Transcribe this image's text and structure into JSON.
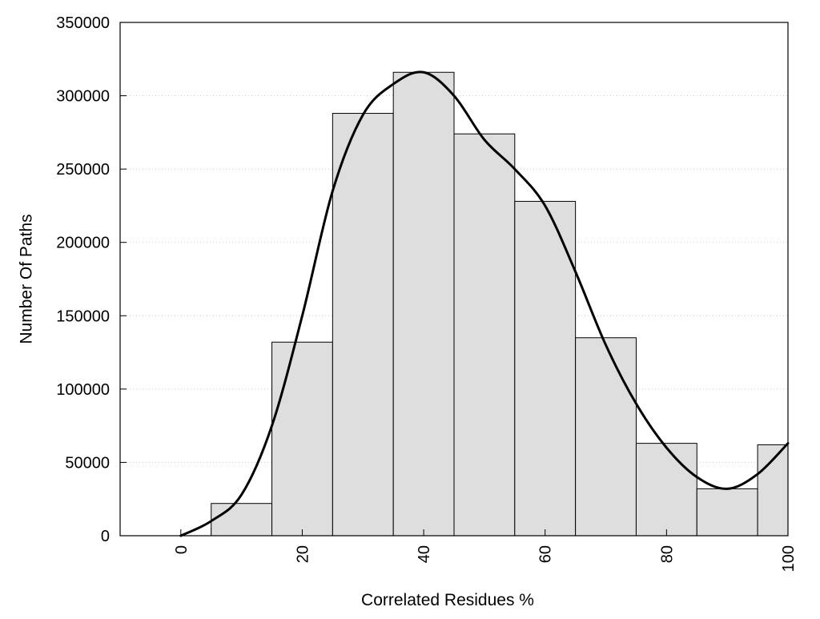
{
  "chart_data": {
    "type": "bar",
    "title": "",
    "xlabel": "Correlated Residues %",
    "ylabel": "Number Of Paths",
    "xlim": [
      -10,
      100
    ],
    "ylim": [
      0,
      350000
    ],
    "grid": "horizontal-dotted",
    "legend": "none",
    "bar_width": 10,
    "bins": [
      {
        "x": 0,
        "value": 0
      },
      {
        "x": 10,
        "value": 22000
      },
      {
        "x": 20,
        "value": 132000
      },
      {
        "x": 30,
        "value": 288000
      },
      {
        "x": 40,
        "value": 316000
      },
      {
        "x": 50,
        "value": 274000
      },
      {
        "x": 60,
        "value": 228000
      },
      {
        "x": 70,
        "value": 135000
      },
      {
        "x": 80,
        "value": 63000
      },
      {
        "x": 90,
        "value": 32000
      },
      {
        "x": 100,
        "value": 62000
      }
    ],
    "smooth_curve": {
      "x": [
        0,
        5,
        10,
        15,
        20,
        25,
        30,
        35,
        40,
        45,
        50,
        55,
        60,
        65,
        70,
        75,
        80,
        85,
        90,
        95,
        100
      ],
      "y": [
        0,
        10000,
        28000,
        75000,
        150000,
        235000,
        287000,
        308000,
        316000,
        300000,
        270000,
        250000,
        225000,
        180000,
        130000,
        90000,
        60000,
        40000,
        32000,
        42000,
        63000
      ]
    },
    "x_ticks": [
      "0",
      "20",
      "40",
      "60",
      "80",
      "100"
    ],
    "x_tick_values": [
      0,
      20,
      40,
      60,
      80,
      100
    ],
    "y_ticks": [
      "0",
      "50000",
      "100000",
      "150000",
      "200000",
      "250000",
      "300000",
      "350000"
    ],
    "y_tick_values": [
      0,
      50000,
      100000,
      150000,
      200000,
      250000,
      300000,
      350000
    ],
    "colors": {
      "bar_fill": "#dedede",
      "bar_stroke": "#000000",
      "curve": "#000000",
      "grid": "#c8c8c8"
    }
  }
}
